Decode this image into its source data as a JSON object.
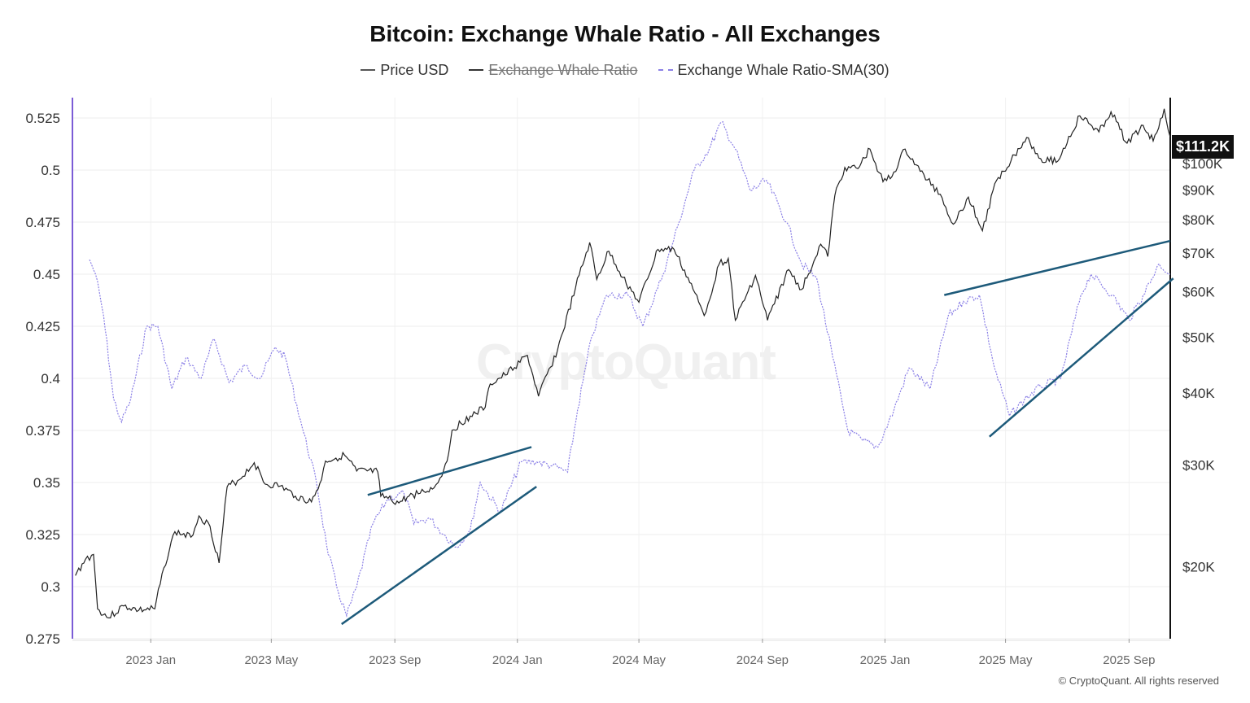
{
  "title": "Bitcoin: Exchange Whale Ratio - All Exchanges",
  "legend": {
    "price": "Price USD",
    "ratio": "Exchange Whale Ratio",
    "sma": "Exchange Whale Ratio-SMA(30)"
  },
  "watermark": "CryptoQuant",
  "copyright": "© CryptoQuant. All rights reserved",
  "colors": {
    "price": "#222222",
    "sma": "#8a7fe6",
    "trendline": "#1d5a7a",
    "left_axis": "#7b5cd6"
  },
  "chart_data": {
    "type": "line",
    "title": "Bitcoin: Exchange Whale Ratio - All Exchanges",
    "x_tick_labels": [
      "2023 Jan",
      "2023 May",
      "2023 Sep",
      "2024 Jan",
      "2024 May",
      "2024 Sep",
      "2025 Jan",
      "2025 May",
      "2025 Sep"
    ],
    "x_range": [
      "2022-10-15",
      "2025-10-12"
    ],
    "left_axis": {
      "ylim": [
        0.275,
        0.525
      ],
      "ticks": [
        "0.525",
        "0.5",
        "0.475",
        "0.45",
        "0.425",
        "0.4",
        "0.375",
        "0.35",
        "0.325",
        "0.3",
        "0.275"
      ]
    },
    "right_axis": {
      "scale": "log",
      "ylim": [
        15000,
        120000
      ],
      "ticks": [
        "$100K",
        "$90K",
        "$80K",
        "$70K",
        "$60K",
        "$50K",
        "$40K",
        "$30K",
        "$20K"
      ],
      "tick_values": [
        100000,
        90000,
        80000,
        70000,
        60000,
        50000,
        40000,
        30000,
        20000
      ]
    },
    "last_price_label": "$111.2K",
    "grid": true,
    "legend_position": "top-center",
    "series": [
      {
        "name": "Price USD",
        "axis": "right",
        "points": [
          [
            "2022-10-18",
            19300
          ],
          [
            "2022-10-28",
            20600
          ],
          [
            "2022-11-05",
            21000
          ],
          [
            "2022-11-09",
            16900
          ],
          [
            "2022-11-20",
            16300
          ],
          [
            "2022-12-05",
            17100
          ],
          [
            "2022-12-20",
            16800
          ],
          [
            "2023-01-05",
            16900
          ],
          [
            "2023-01-14",
            19900
          ],
          [
            "2023-01-25",
            23000
          ],
          [
            "2023-02-10",
            22500
          ],
          [
            "2023-02-18",
            24500
          ],
          [
            "2023-03-01",
            23500
          ],
          [
            "2023-03-10",
            20300
          ],
          [
            "2023-03-18",
            27500
          ],
          [
            "2023-03-30",
            28300
          ],
          [
            "2023-04-14",
            30300
          ],
          [
            "2023-04-25",
            27800
          ],
          [
            "2023-05-10",
            27600
          ],
          [
            "2023-05-25",
            26500
          ],
          [
            "2023-06-10",
            25900
          ],
          [
            "2023-06-20",
            28300
          ],
          [
            "2023-06-24",
            30500
          ],
          [
            "2023-07-13",
            31200
          ],
          [
            "2023-07-25",
            29300
          ],
          [
            "2023-08-15",
            29200
          ],
          [
            "2023-08-18",
            26500
          ],
          [
            "2023-09-05",
            25800
          ],
          [
            "2023-09-15",
            26500
          ],
          [
            "2023-09-30",
            27000
          ],
          [
            "2023-10-10",
            27400
          ],
          [
            "2023-10-16",
            28500
          ],
          [
            "2023-10-23",
            30500
          ],
          [
            "2023-10-28",
            34500
          ],
          [
            "2023-11-15",
            36500
          ],
          [
            "2023-11-30",
            37800
          ],
          [
            "2023-12-05",
            41500
          ],
          [
            "2023-12-20",
            43000
          ],
          [
            "2024-01-11",
            46500
          ],
          [
            "2024-01-22",
            39500
          ],
          [
            "2024-02-10",
            47500
          ],
          [
            "2024-02-28",
            61000
          ],
          [
            "2024-03-13",
            73000
          ],
          [
            "2024-03-20",
            63000
          ],
          [
            "2024-04-01",
            70500
          ],
          [
            "2024-04-15",
            63500
          ],
          [
            "2024-05-01",
            57500
          ],
          [
            "2024-05-20",
            71000
          ],
          [
            "2024-06-05",
            71000
          ],
          [
            "2024-06-24",
            60500
          ],
          [
            "2024-07-05",
            54500
          ],
          [
            "2024-07-20",
            67000
          ],
          [
            "2024-07-29",
            68500
          ],
          [
            "2024-08-05",
            53500
          ],
          [
            "2024-08-25",
            64000
          ],
          [
            "2024-09-06",
            53500
          ],
          [
            "2024-09-27",
            65500
          ],
          [
            "2024-10-10",
            60500
          ],
          [
            "2024-10-29",
            72500
          ],
          [
            "2024-11-05",
            69000
          ],
          [
            "2024-11-12",
            88000
          ],
          [
            "2024-11-22",
            98500
          ],
          [
            "2024-12-05",
            98000
          ],
          [
            "2024-12-17",
            106000
          ],
          [
            "2024-12-30",
            93000
          ],
          [
            "2025-01-08",
            95000
          ],
          [
            "2025-01-21",
            106000
          ],
          [
            "2025-02-05",
            97000
          ],
          [
            "2025-02-25",
            88500
          ],
          [
            "2025-03-10",
            78500
          ],
          [
            "2025-03-25",
            87500
          ],
          [
            "2025-04-08",
            76500
          ],
          [
            "2025-04-22",
            93500
          ],
          [
            "2025-05-10",
            103500
          ],
          [
            "2025-05-22",
            111000
          ],
          [
            "2025-06-05",
            102000
          ],
          [
            "2025-06-22",
            101000
          ],
          [
            "2025-07-14",
            121000
          ],
          [
            "2025-08-02",
            113500
          ],
          [
            "2025-08-14",
            123000
          ],
          [
            "2025-08-30",
            108500
          ],
          [
            "2025-09-15",
            116500
          ],
          [
            "2025-09-25",
            109500
          ],
          [
            "2025-10-06",
            124500
          ],
          [
            "2025-10-12",
            111200
          ]
        ]
      },
      {
        "name": "Exchange Whale Ratio-SMA(30)",
        "axis": "left",
        "points": [
          [
            "2022-11-01",
            0.457
          ],
          [
            "2022-11-07",
            0.45
          ],
          [
            "2022-11-15",
            0.43
          ],
          [
            "2022-11-25",
            0.39
          ],
          [
            "2022-12-03",
            0.379
          ],
          [
            "2022-12-12",
            0.39
          ],
          [
            "2022-12-28",
            0.425
          ],
          [
            "2023-01-08",
            0.425
          ],
          [
            "2023-01-22",
            0.395
          ],
          [
            "2023-02-05",
            0.41
          ],
          [
            "2023-02-20",
            0.4
          ],
          [
            "2023-03-05",
            0.419
          ],
          [
            "2023-03-20",
            0.398
          ],
          [
            "2023-04-05",
            0.406
          ],
          [
            "2023-04-20",
            0.4
          ],
          [
            "2023-05-05",
            0.415
          ],
          [
            "2023-05-15",
            0.41
          ],
          [
            "2023-05-30",
            0.38
          ],
          [
            "2023-06-15",
            0.35
          ],
          [
            "2023-06-25",
            0.32
          ],
          [
            "2023-07-05",
            0.3
          ],
          [
            "2023-07-15",
            0.286
          ],
          [
            "2023-07-25",
            0.3
          ],
          [
            "2023-08-10",
            0.33
          ],
          [
            "2023-08-25",
            0.342
          ],
          [
            "2023-09-10",
            0.345
          ],
          [
            "2023-09-20",
            0.33
          ],
          [
            "2023-10-05",
            0.333
          ],
          [
            "2023-10-20",
            0.325
          ],
          [
            "2023-11-01",
            0.319
          ],
          [
            "2023-11-15",
            0.327
          ],
          [
            "2023-11-25",
            0.35
          ],
          [
            "2023-12-15",
            0.336
          ],
          [
            "2024-01-05",
            0.36
          ],
          [
            "2024-01-20",
            0.36
          ],
          [
            "2024-02-05",
            0.358
          ],
          [
            "2024-02-20",
            0.355
          ],
          [
            "2024-03-01",
            0.385
          ],
          [
            "2024-03-15",
            0.42
          ],
          [
            "2024-03-30",
            0.44
          ],
          [
            "2024-04-20",
            0.44
          ],
          [
            "2024-05-05",
            0.425
          ],
          [
            "2024-05-25",
            0.45
          ],
          [
            "2024-06-10",
            0.475
          ],
          [
            "2024-06-25",
            0.5
          ],
          [
            "2024-07-10",
            0.51
          ],
          [
            "2024-07-22",
            0.523
          ],
          [
            "2024-08-05",
            0.51
          ],
          [
            "2024-08-20",
            0.49
          ],
          [
            "2024-09-05",
            0.495
          ],
          [
            "2024-09-25",
            0.475
          ],
          [
            "2024-10-10",
            0.455
          ],
          [
            "2024-10-25",
            0.448
          ],
          [
            "2024-11-10",
            0.41
          ],
          [
            "2024-11-25",
            0.375
          ],
          [
            "2024-12-10",
            0.37
          ],
          [
            "2024-12-25",
            0.367
          ],
          [
            "2025-01-10",
            0.385
          ],
          [
            "2025-01-25",
            0.405
          ],
          [
            "2025-02-15",
            0.395
          ],
          [
            "2025-03-05",
            0.43
          ],
          [
            "2025-03-20",
            0.437
          ],
          [
            "2025-04-05",
            0.44
          ],
          [
            "2025-04-20",
            0.405
          ],
          [
            "2025-05-05",
            0.382
          ],
          [
            "2025-05-20",
            0.39
          ],
          [
            "2025-06-05",
            0.396
          ],
          [
            "2025-06-25",
            0.4
          ],
          [
            "2025-07-15",
            0.44
          ],
          [
            "2025-07-25",
            0.45
          ],
          [
            "2025-08-15",
            0.44
          ],
          [
            "2025-09-01",
            0.428
          ],
          [
            "2025-09-15",
            0.44
          ],
          [
            "2025-10-01",
            0.455
          ],
          [
            "2025-10-12",
            0.45
          ]
        ]
      }
    ],
    "annotations": [
      {
        "type": "trendline",
        "from": [
          "2023-08-05",
          0.344
        ],
        "to": [
          "2024-01-15",
          0.367
        ]
      },
      {
        "type": "trendline",
        "from": [
          "2023-07-10",
          0.282
        ],
        "to": [
          "2024-01-20",
          0.348
        ]
      },
      {
        "type": "trendline",
        "from": [
          "2025-03-01",
          0.44
        ],
        "to": [
          "2025-10-12",
          0.466
        ]
      },
      {
        "type": "trendline",
        "from": [
          "2025-04-15",
          0.372
        ],
        "to": [
          "2025-10-15",
          0.448
        ]
      }
    ]
  }
}
